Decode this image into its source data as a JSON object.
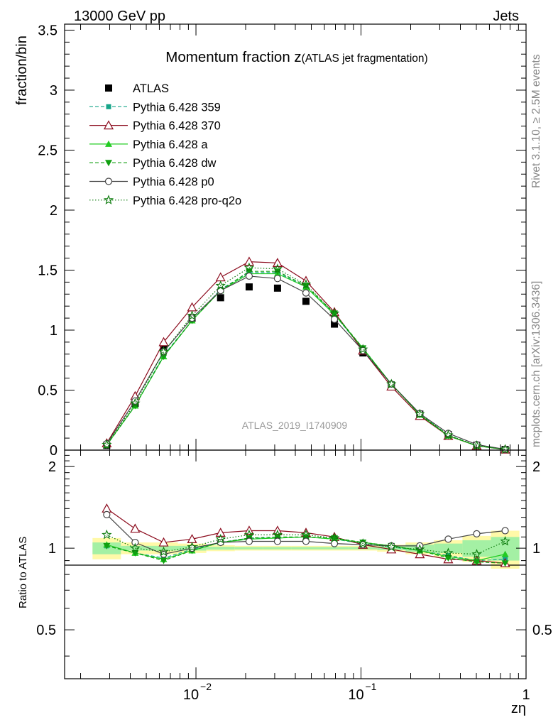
{
  "header": {
    "left": "13000 GeV pp",
    "right": "Jets"
  },
  "side_labels": {
    "rivet": "Rivet 3.1.10, ≥ 2.5M events",
    "mcplots": "mcplots.cern.ch [arXiv:1306.3436]"
  },
  "analysis_id": "ATLAS_2019_I1740909",
  "chart_data": [
    {
      "type": "line",
      "title": "Momentum fraction z",
      "title_suffix": "(ATLAS jet fragmentation)",
      "ylabel": "fraction/bin",
      "xlabel": "zη",
      "xscale": "log",
      "xlim": [
        0.0016,
        1.0
      ],
      "ylim": [
        0,
        3.55
      ],
      "yticks": [
        0,
        0.5,
        1,
        1.5,
        2,
        2.5,
        3,
        3.5
      ],
      "ytick_labels": [
        "0",
        "0.5",
        "1",
        "1.5",
        "2",
        "2.5",
        "3",
        "3.5"
      ],
      "xticks": [
        0.01,
        0.1,
        1
      ],
      "xtick_labels": [
        "10",
        "10",
        "1"
      ],
      "xtick_exponents": [
        "−2",
        "−1",
        ""
      ],
      "legend_placement": "top-left",
      "x": [
        0.00288,
        0.00428,
        0.00637,
        0.00947,
        0.0141,
        0.021,
        0.0312,
        0.0464,
        0.069,
        0.1027,
        0.1527,
        0.2271,
        0.3378,
        0.5023,
        0.7471
      ],
      "series": [
        {
          "name": "ATLAS",
          "color": "#000000",
          "marker": "filled-square",
          "line": "none",
          "values": [
            0.04,
            0.39,
            0.86,
            1.1,
            1.27,
            1.36,
            1.35,
            1.24,
            1.05,
            0.81,
            0.54,
            0.3,
            0.13,
            0.04,
            0.006
          ]
        },
        {
          "name": "Pythia 6.428 359",
          "color": "#17a589",
          "marker": "filled-square-small",
          "line": "dashed",
          "values": [
            0.041,
            0.37,
            0.79,
            1.08,
            1.34,
            1.48,
            1.48,
            1.36,
            1.13,
            0.84,
            0.55,
            0.3,
            0.125,
            0.036,
            0.0055
          ]
        },
        {
          "name": "Pythia 6.428 370",
          "color": "#8b0a1c",
          "marker": "open-triangle",
          "line": "solid",
          "values": [
            0.057,
            0.45,
            0.9,
            1.19,
            1.44,
            1.57,
            1.56,
            1.41,
            1.15,
            0.83,
            0.53,
            0.285,
            0.118,
            0.036,
            0.0053
          ]
        },
        {
          "name": "Pythia 6.428 a",
          "color": "#22cc22",
          "marker": "filled-triangle",
          "line": "solid",
          "values": [
            0.043,
            0.37,
            0.78,
            1.08,
            1.33,
            1.47,
            1.47,
            1.36,
            1.13,
            0.85,
            0.55,
            0.295,
            0.12,
            0.036,
            0.0057
          ]
        },
        {
          "name": "Pythia 6.428 dw",
          "color": "#10a010",
          "marker": "filled-triangle-down",
          "line": "dashed",
          "values": [
            0.041,
            0.37,
            0.78,
            1.08,
            1.33,
            1.49,
            1.49,
            1.37,
            1.14,
            0.85,
            0.55,
            0.295,
            0.12,
            0.036,
            0.0052
          ]
        },
        {
          "name": "Pythia 6.428 p0",
          "color": "#444444",
          "marker": "open-circle",
          "line": "solid",
          "values": [
            0.053,
            0.41,
            0.82,
            1.1,
            1.33,
            1.45,
            1.43,
            1.31,
            1.09,
            0.83,
            0.55,
            0.305,
            0.14,
            0.046,
            0.007
          ]
        },
        {
          "name": "Pythia 6.428 pro-q2o",
          "color": "#0b7a0b",
          "marker": "open-star",
          "line": "dotted",
          "values": [
            0.045,
            0.39,
            0.82,
            1.12,
            1.37,
            1.52,
            1.51,
            1.38,
            1.14,
            0.84,
            0.55,
            0.3,
            0.125,
            0.038,
            0.0063
          ]
        }
      ]
    },
    {
      "type": "line",
      "ylabel": "Ratio to ATLAS",
      "xscale": "log",
      "ylim": [
        0.33,
        2.3
      ],
      "yticks": [
        0.5,
        1,
        2
      ],
      "ytick_labels": [
        "0.5",
        "1",
        "2"
      ],
      "reference_line": 1,
      "bands": {
        "inner_color": "#a4f0a4",
        "outer_color": "#fff9a8",
        "inner_half": [
          0.05,
          0.02,
          0.02,
          0.02,
          0.012,
          0.01,
          0.01,
          0.01,
          0.01,
          0.01,
          0.015,
          0.03,
          0.04,
          0.07,
          0.1
        ],
        "outer_half": [
          0.09,
          0.05,
          0.05,
          0.04,
          0.025,
          0.02,
          0.02,
          0.02,
          0.02,
          0.02,
          0.03,
          0.05,
          0.07,
          0.11,
          0.16
        ]
      },
      "series": [
        {
          "name": "Pythia 6.428 359",
          "values": [
            1.02,
            0.96,
            0.92,
            0.99,
            1.05,
            1.09,
            1.09,
            1.1,
            1.08,
            1.04,
            1.01,
            0.98,
            0.94,
            0.9,
            0.91
          ]
        },
        {
          "name": "Pythia 6.428 370",
          "values": [
            1.4,
            1.18,
            1.05,
            1.08,
            1.14,
            1.16,
            1.16,
            1.14,
            1.1,
            1.03,
            0.99,
            0.95,
            0.91,
            0.9,
            0.88
          ]
        },
        {
          "name": "Pythia 6.428 a",
          "values": [
            1.03,
            0.96,
            0.91,
            0.98,
            1.05,
            1.08,
            1.09,
            1.1,
            1.08,
            1.05,
            1.02,
            0.98,
            0.93,
            0.9,
            0.95
          ]
        },
        {
          "name": "Pythia 6.428 dw",
          "values": [
            1.02,
            0.96,
            0.9,
            0.98,
            1.05,
            1.09,
            1.1,
            1.1,
            1.09,
            1.05,
            1.02,
            0.98,
            0.92,
            0.89,
            0.88
          ]
        },
        {
          "name": "Pythia 6.428 p0",
          "values": [
            1.33,
            1.05,
            0.95,
            1.0,
            1.05,
            1.06,
            1.06,
            1.06,
            1.04,
            1.03,
            1.02,
            1.02,
            1.08,
            1.13,
            1.16
          ]
        },
        {
          "name": "Pythia 6.428 pro-q2o",
          "values": [
            1.12,
            1.0,
            0.97,
            1.01,
            1.08,
            1.12,
            1.12,
            1.12,
            1.09,
            1.04,
            1.01,
            0.99,
            0.96,
            0.95,
            1.06
          ]
        }
      ]
    }
  ]
}
